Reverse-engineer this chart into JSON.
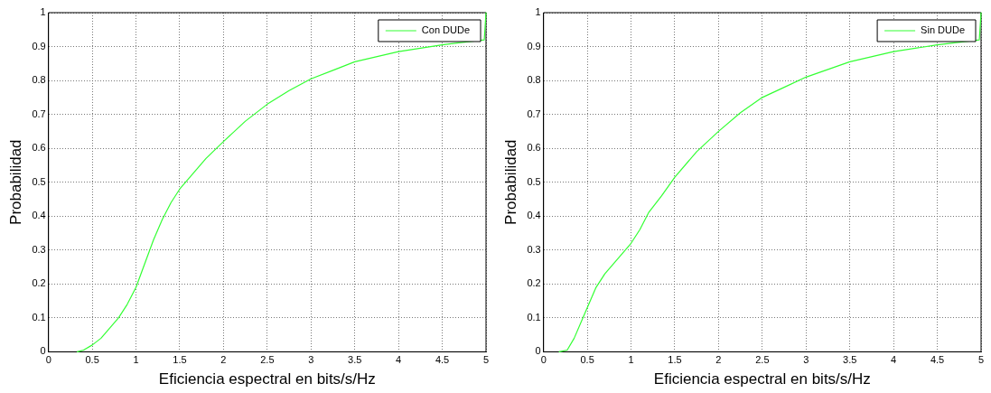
{
  "chart_data": [
    {
      "type": "line",
      "xlabel": "Eficiencia espectral en bits/s/Hz",
      "ylabel": "Probabilidad",
      "xlim": [
        0,
        5
      ],
      "xticks": [
        0,
        0.5,
        1,
        1.5,
        2,
        2.5,
        3,
        3.5,
        4,
        4.5,
        5
      ],
      "ylim": [
        0,
        1
      ],
      "yticks": [
        0,
        0.1,
        0.2,
        0.3,
        0.4,
        0.5,
        0.6,
        0.7,
        0.8,
        0.9,
        1
      ],
      "grid": true,
      "legend": "top right",
      "line_style": "solid",
      "marker": "none",
      "series": [
        {
          "name": "Con DUDe",
          "color": "#33ff33",
          "x": [
            0.33,
            0.4,
            0.5,
            0.6,
            0.7,
            0.8,
            0.9,
            1.0,
            1.1,
            1.2,
            1.3,
            1.4,
            1.5,
            1.6,
            1.8,
            2.0,
            2.25,
            2.5,
            2.75,
            3.0,
            3.25,
            3.5,
            4.0,
            4.5,
            4.98,
            5.0
          ],
          "values": [
            0,
            0.005,
            0.02,
            0.04,
            0.07,
            0.1,
            0.14,
            0.19,
            0.26,
            0.33,
            0.39,
            0.44,
            0.48,
            0.51,
            0.57,
            0.62,
            0.68,
            0.73,
            0.77,
            0.805,
            0.83,
            0.855,
            0.885,
            0.905,
            0.92,
            1.0
          ]
        }
      ]
    },
    {
      "type": "line",
      "xlabel": "Eficiencia espectral en bits/s/Hz",
      "ylabel": "Probabilidad",
      "xlim": [
        0,
        5
      ],
      "xticks": [
        0,
        0.5,
        1,
        1.5,
        2,
        2.5,
        3,
        3.5,
        4,
        4.5,
        5
      ],
      "ylim": [
        0,
        1
      ],
      "yticks": [
        0,
        0.1,
        0.2,
        0.3,
        0.4,
        0.5,
        0.6,
        0.7,
        0.8,
        0.9,
        1
      ],
      "grid": true,
      "legend": "top right",
      "line_style": "solid",
      "marker": "none",
      "series": [
        {
          "name": "Sin DUDe",
          "color": "#33ff33",
          "x": [
            0.18,
            0.27,
            0.35,
            0.45,
            0.5,
            0.6,
            0.7,
            0.8,
            1.0,
            1.1,
            1.2,
            1.35,
            1.5,
            1.75,
            2.0,
            2.25,
            2.5,
            2.75,
            3.0,
            3.5,
            4.0,
            4.5,
            4.98,
            5.0
          ],
          "values": [
            0,
            0.005,
            0.04,
            0.1,
            0.13,
            0.19,
            0.23,
            0.26,
            0.32,
            0.36,
            0.41,
            0.46,
            0.515,
            0.59,
            0.65,
            0.705,
            0.75,
            0.78,
            0.81,
            0.855,
            0.885,
            0.905,
            0.92,
            1.0
          ]
        }
      ]
    }
  ]
}
